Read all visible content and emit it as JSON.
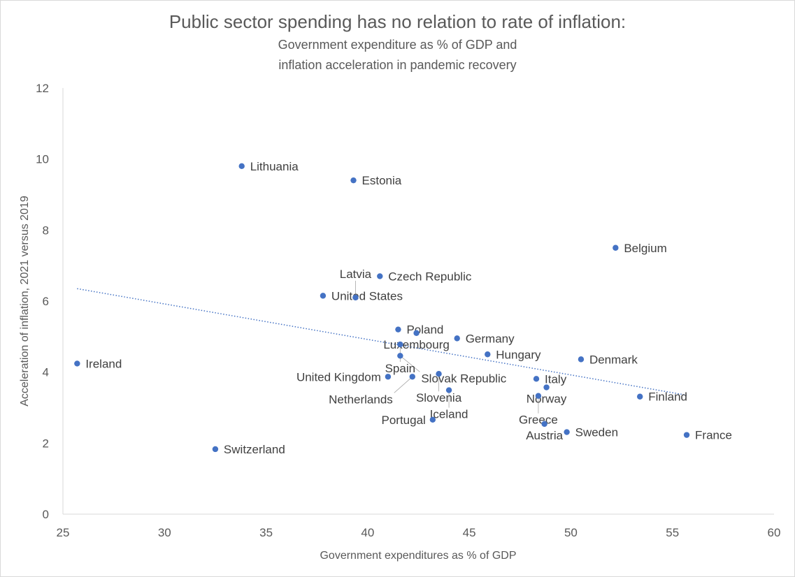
{
  "chart_data": {
    "type": "scatter",
    "title": "Public sector spending has no relation to rate of inflation:",
    "subtitle_lines": [
      "Government expenditure as % of GDP and",
      "inflation acceleration in pandemic recovery"
    ],
    "xlabel": "Government expenditures as % of GDP",
    "ylabel": "Acceleration of inflation, 2021 versus 2019",
    "xlim": [
      25,
      60
    ],
    "ylim": [
      0,
      12
    ],
    "xticks": [
      25,
      30,
      35,
      40,
      45,
      50,
      55,
      60
    ],
    "yticks": [
      0,
      2,
      4,
      6,
      8,
      10,
      12
    ],
    "grid": false,
    "marker_color": "#4472c4",
    "trendline": {
      "type": "linear",
      "style": "dotted",
      "color": "#4472c4",
      "from": [
        25.7,
        6.35
      ],
      "to": [
        55.7,
        3.35
      ]
    },
    "points": [
      {
        "label": "Lithuania",
        "x": 33.8,
        "y": 9.8
      },
      {
        "label": "Estonia",
        "x": 39.3,
        "y": 9.4
      },
      {
        "label": "Belgium",
        "x": 52.2,
        "y": 7.5
      },
      {
        "label": "Czech Republic",
        "x": 40.6,
        "y": 6.7
      },
      {
        "label": "United States",
        "x": 37.8,
        "y": 6.15
      },
      {
        "label": "Latvia",
        "x": 39.4,
        "y": 6.1
      },
      {
        "label": "Poland",
        "x": 41.5,
        "y": 5.2
      },
      {
        "label": "Luxembourg",
        "x": 42.4,
        "y": 5.1
      },
      {
        "label": "Germany",
        "x": 44.4,
        "y": 4.95
      },
      {
        "label": "Spain",
        "x": 41.6,
        "y": 4.78
      },
      {
        "label": "Slovak Republic",
        "x": 41.6,
        "y": 4.46
      },
      {
        "label": "Hungary",
        "x": 45.9,
        "y": 4.5
      },
      {
        "label": "Denmark",
        "x": 50.5,
        "y": 4.36
      },
      {
        "label": "Ireland",
        "x": 25.7,
        "y": 4.24
      },
      {
        "label": "Slovenia",
        "x": 43.5,
        "y": 3.95
      },
      {
        "label": "United Kingdom",
        "x": 41.0,
        "y": 3.87
      },
      {
        "label": "Netherlands",
        "x": 42.2,
        "y": 3.87
      },
      {
        "label": "Italy",
        "x": 48.3,
        "y": 3.81
      },
      {
        "label": "Norway",
        "x": 48.8,
        "y": 3.57
      },
      {
        "label": "Iceland",
        "x": 44.0,
        "y": 3.49
      },
      {
        "label": "Greece",
        "x": 48.4,
        "y": 3.33
      },
      {
        "label": "Finland",
        "x": 53.4,
        "y": 3.31
      },
      {
        "label": "Portugal",
        "x": 43.2,
        "y": 2.66
      },
      {
        "label": "Austria",
        "x": 48.7,
        "y": 2.54
      },
      {
        "label": "Sweden",
        "x": 49.8,
        "y": 2.31
      },
      {
        "label": "France",
        "x": 55.7,
        "y": 2.23
      },
      {
        "label": "Switzerland",
        "x": 32.5,
        "y": 1.83
      }
    ]
  }
}
